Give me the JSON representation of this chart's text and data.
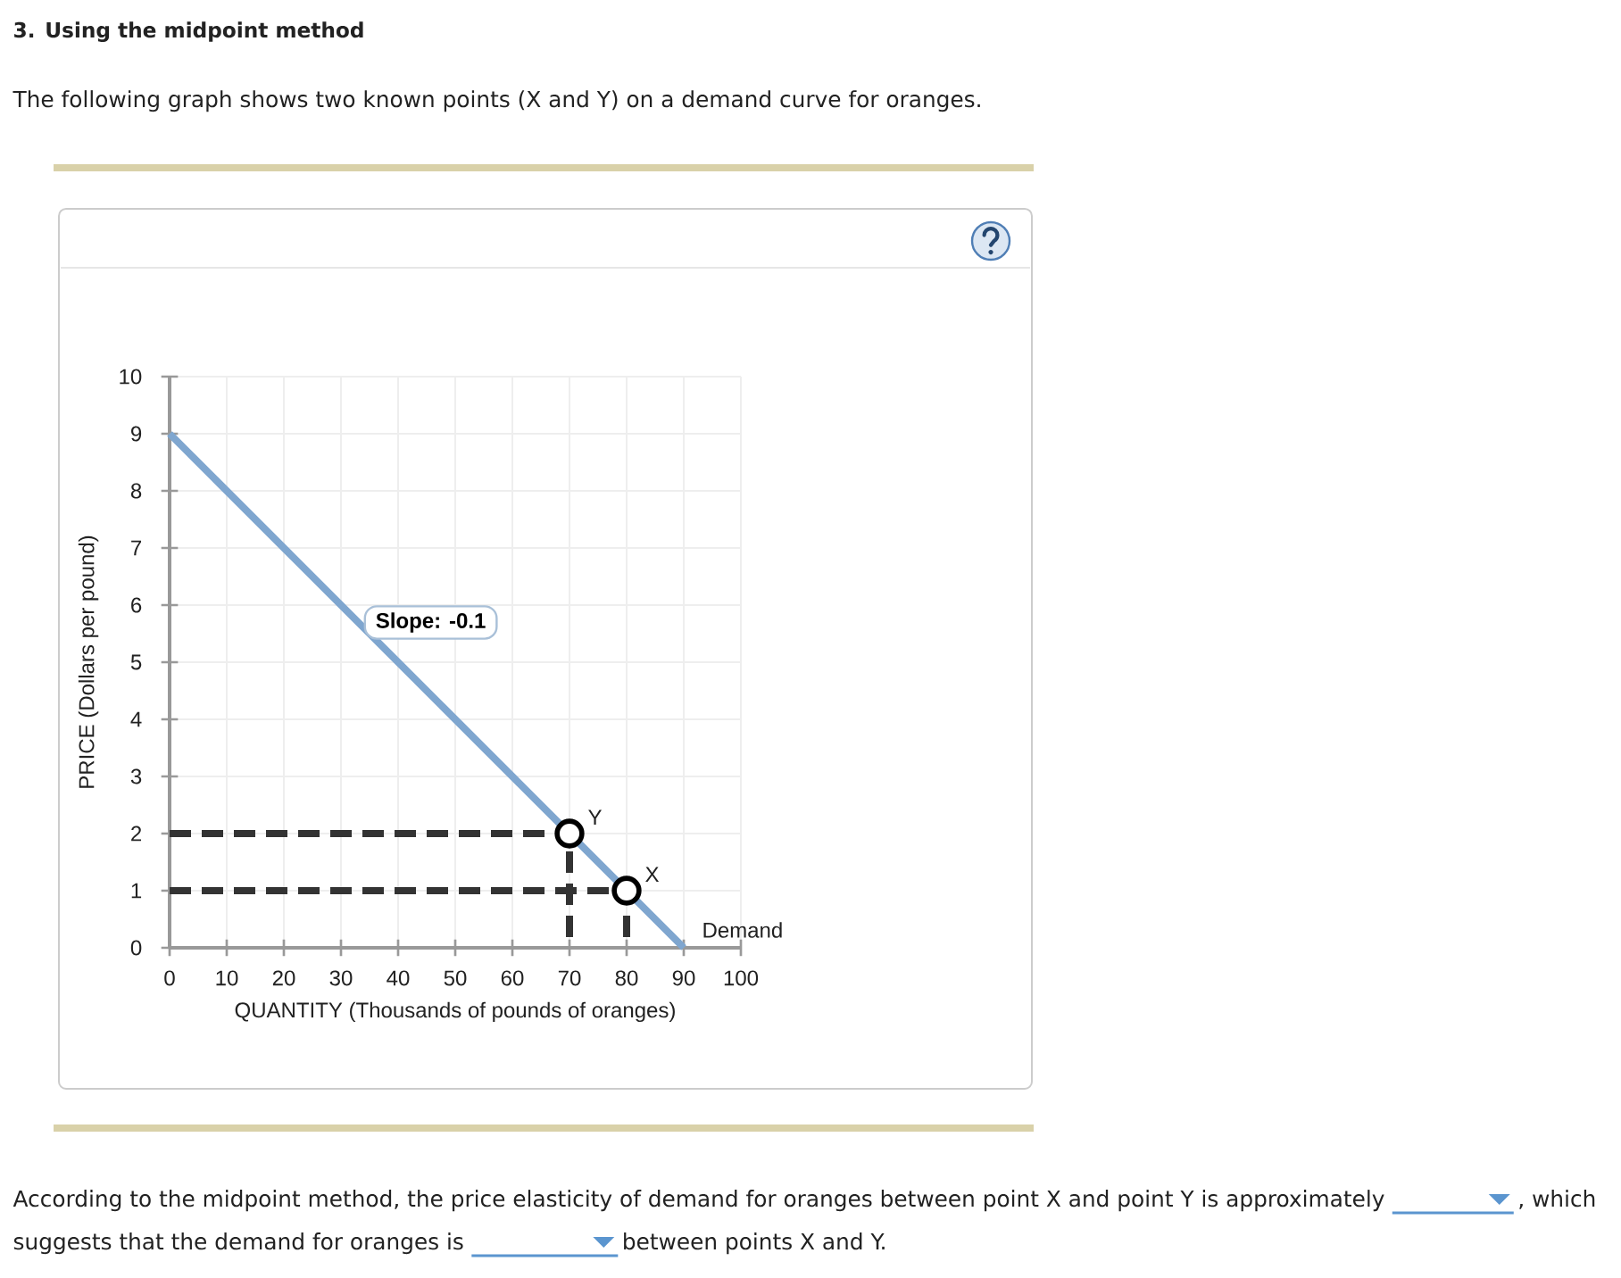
{
  "chart_data": {
    "type": "line",
    "title": "3. Using the midpoint method",
    "subtitle": "The following graph shows two known points (X and Y) on a demand curve for oranges.",
    "xlabel": "QUANTITY (Thousands of pounds of oranges)",
    "ylabel": "PRICE (Dollars per pound)",
    "series": [
      {
        "name": "Demand",
        "type": "line",
        "color": "#7fa6cf",
        "x": [
          0,
          90
        ],
        "values": [
          9,
          0
        ]
      },
      {
        "type": "line",
        "line_style": "dashed",
        "color": "#333333",
        "x": [
          0,
          70,
          70
        ],
        "values": [
          2,
          2,
          0
        ]
      },
      {
        "type": "line",
        "line_style": "dashed",
        "color": "#333333",
        "x": [
          0,
          80,
          80
        ],
        "values": [
          1,
          1,
          0
        ]
      },
      {
        "type": "scatter",
        "marker": "circle",
        "color": "#000000",
        "x": [
          70,
          80
        ],
        "values": [
          2,
          1
        ]
      }
    ],
    "xlim": [
      0,
      100
    ],
    "ylim": [
      0,
      10
    ],
    "xticks": [
      0,
      10,
      20,
      30,
      40,
      50,
      60,
      70,
      80,
      90,
      100
    ],
    "yticks": [
      0,
      1,
      2,
      3,
      4,
      5,
      6,
      7,
      8,
      9,
      10
    ],
    "grid": true,
    "annotations": [
      {
        "text": "Slope: -0.1",
        "x": 34,
        "y": 5.6
      },
      {
        "text": "Y",
        "x": 70,
        "y": 2
      },
      {
        "text": "X",
        "x": 80,
        "y": 1
      },
      "According to the midpoint method, the price elasticity of demand for oranges between point X and point Y is approximately",
      ", which",
      "suggests that the demand for oranges is",
      "between points X and Y."
    ]
  }
}
